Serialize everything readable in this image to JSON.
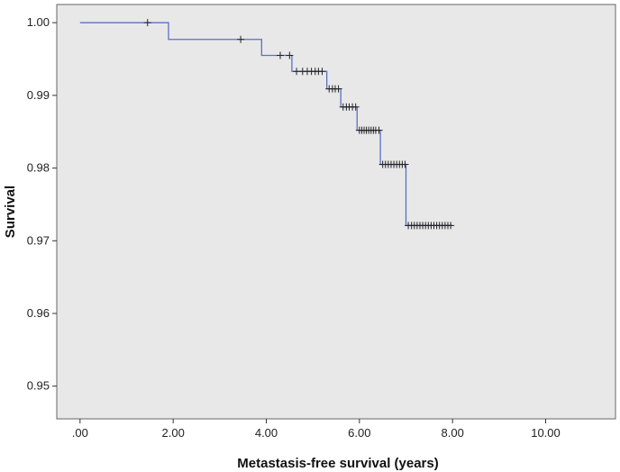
{
  "chart_data": {
    "type": "line",
    "subtype": "kaplan-meier",
    "title": "",
    "xlabel": "Metastasis-free survival (years)",
    "ylabel": "Survival",
    "xlim": [
      -0.5,
      11.5
    ],
    "ylim": [
      0.9455,
      1.0025
    ],
    "x_ticks": [
      0,
      2,
      4,
      6,
      8,
      10
    ],
    "x_tick_labels": [
      ".00",
      "2.00",
      "4.00",
      "6.00",
      "8.00",
      "10.00"
    ],
    "y_ticks": [
      1.0,
      0.99,
      0.98,
      0.97,
      0.96,
      0.95
    ],
    "y_tick_labels": [
      "1.00",
      "0.99",
      "0.98",
      "0.97",
      "0.96",
      "0.95"
    ],
    "grid": false,
    "colors": {
      "background": "#e8e8e8",
      "line": "#5b6fc5",
      "censor": "#222222",
      "frame": "#666666"
    },
    "series": [
      {
        "name": "Survival",
        "steps": [
          {
            "x": 0.0,
            "y": 1.0
          },
          {
            "x": 1.9,
            "y": 0.9977
          },
          {
            "x": 3.9,
            "y": 0.9955
          },
          {
            "x": 4.55,
            "y": 0.9933
          },
          {
            "x": 5.3,
            "y": 0.9909
          },
          {
            "x": 5.6,
            "y": 0.9884
          },
          {
            "x": 5.95,
            "y": 0.9852
          },
          {
            "x": 6.45,
            "y": 0.9805
          },
          {
            "x": 7.0,
            "y": 0.9721
          }
        ],
        "end_x": 8.0,
        "censored": [
          {
            "x": 1.45,
            "y": 1.0
          },
          {
            "x": 3.45,
            "y": 0.9977
          },
          {
            "x": 4.3,
            "y": 0.9955
          },
          {
            "x": 4.5,
            "y": 0.9955
          },
          {
            "x": 4.65,
            "y": 0.9933
          },
          {
            "x": 4.78,
            "y": 0.9933
          },
          {
            "x": 4.88,
            "y": 0.9933
          },
          {
            "x": 4.97,
            "y": 0.9933
          },
          {
            "x": 5.05,
            "y": 0.9933
          },
          {
            "x": 5.12,
            "y": 0.9933
          },
          {
            "x": 5.2,
            "y": 0.9933
          },
          {
            "x": 5.35,
            "y": 0.9909
          },
          {
            "x": 5.42,
            "y": 0.9909
          },
          {
            "x": 5.48,
            "y": 0.9909
          },
          {
            "x": 5.55,
            "y": 0.9909
          },
          {
            "x": 5.65,
            "y": 0.9884
          },
          {
            "x": 5.72,
            "y": 0.9884
          },
          {
            "x": 5.78,
            "y": 0.9884
          },
          {
            "x": 5.85,
            "y": 0.9884
          },
          {
            "x": 5.92,
            "y": 0.9884
          },
          {
            "x": 6.0,
            "y": 0.9852
          },
          {
            "x": 6.05,
            "y": 0.9852
          },
          {
            "x": 6.1,
            "y": 0.9852
          },
          {
            "x": 6.15,
            "y": 0.9852
          },
          {
            "x": 6.2,
            "y": 0.9852
          },
          {
            "x": 6.25,
            "y": 0.9852
          },
          {
            "x": 6.3,
            "y": 0.9852
          },
          {
            "x": 6.35,
            "y": 0.9852
          },
          {
            "x": 6.42,
            "y": 0.9852
          },
          {
            "x": 6.5,
            "y": 0.9805
          },
          {
            "x": 6.56,
            "y": 0.9805
          },
          {
            "x": 6.62,
            "y": 0.9805
          },
          {
            "x": 6.68,
            "y": 0.9805
          },
          {
            "x": 6.74,
            "y": 0.9805
          },
          {
            "x": 6.8,
            "y": 0.9805
          },
          {
            "x": 6.86,
            "y": 0.9805
          },
          {
            "x": 6.92,
            "y": 0.9805
          },
          {
            "x": 6.98,
            "y": 0.9805
          },
          {
            "x": 7.05,
            "y": 0.9721
          },
          {
            "x": 7.12,
            "y": 0.9721
          },
          {
            "x": 7.18,
            "y": 0.9721
          },
          {
            "x": 7.24,
            "y": 0.9721
          },
          {
            "x": 7.3,
            "y": 0.9721
          },
          {
            "x": 7.36,
            "y": 0.9721
          },
          {
            "x": 7.42,
            "y": 0.9721
          },
          {
            "x": 7.48,
            "y": 0.9721
          },
          {
            "x": 7.54,
            "y": 0.9721
          },
          {
            "x": 7.6,
            "y": 0.9721
          },
          {
            "x": 7.66,
            "y": 0.9721
          },
          {
            "x": 7.72,
            "y": 0.9721
          },
          {
            "x": 7.78,
            "y": 0.9721
          },
          {
            "x": 7.84,
            "y": 0.9721
          },
          {
            "x": 7.9,
            "y": 0.9721
          },
          {
            "x": 7.96,
            "y": 0.9721
          }
        ]
      }
    ]
  }
}
